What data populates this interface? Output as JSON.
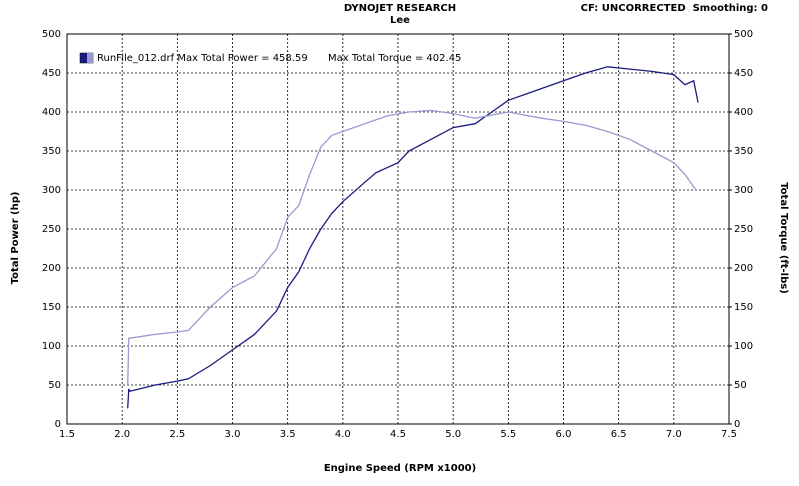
{
  "chart_data": {
    "type": "line",
    "title": "DYNOJET RESEARCH",
    "subtitle": "Lee",
    "header_right": "CF: UNCORRECTED  Smoothing: 0",
    "legend_texts": [
      "RunFile_012.drf Max Total Power = 458.59",
      "Max Total Torque = 402.45"
    ],
    "xlabel": "Engine Speed (RPM x1000)",
    "ylabel": "Total Power (hp)",
    "y2label": "Total Torque (ft-lbs)",
    "xlim": [
      1.5,
      7.5
    ],
    "xticks": [
      1.5,
      {
        "value": 2,
        "label": "2.0"
      },
      2.5,
      {
        "value": 3,
        "label": "3.0"
      },
      3.5,
      {
        "value": 4,
        "label": "4.0"
      },
      4.5,
      {
        "value": 5,
        "label": "5.0"
      },
      5.5,
      {
        "value": 6,
        "label": "6.0"
      },
      6.5,
      {
        "value": 7,
        "label": "7.0"
      },
      7.5
    ],
    "ylim": [
      0,
      500
    ],
    "yticks": [
      0,
      50,
      100,
      150,
      200,
      250,
      300,
      350,
      400,
      450,
      500
    ],
    "y2lim": [
      0,
      500
    ],
    "y2ticks": [
      0,
      50,
      100,
      150,
      200,
      250,
      300,
      350,
      400,
      450,
      500
    ],
    "grid": true,
    "series": [
      {
        "color": "#1a1a80",
        "axis": "y",
        "x": [
          2.05,
          2.06,
          2.07,
          2.3,
          2.5,
          2.6,
          2.8,
          3.0,
          3.2,
          3.4,
          3.5,
          3.6,
          3.7,
          3.8,
          3.9,
          4.0,
          4.2,
          4.3,
          4.5,
          4.6,
          4.8,
          5.0,
          5.2,
          5.3,
          5.5,
          5.7,
          6.0,
          6.2,
          6.4,
          6.6,
          6.8,
          7.0,
          7.1,
          7.18,
          7.22
        ],
        "values": [
          20,
          45,
          42,
          50,
          55,
          58,
          75,
          95,
          115,
          145,
          175,
          195,
          225,
          250,
          270,
          285,
          310,
          322,
          335,
          350,
          365,
          380,
          385,
          395,
          415,
          425,
          440,
          450,
          458,
          455,
          452,
          448,
          435,
          440,
          412
        ]
      },
      {
        "color": "#9a9ad0",
        "axis": "y2",
        "x": [
          2.05,
          2.06,
          2.07,
          2.3,
          2.5,
          2.6,
          2.8,
          3.0,
          3.2,
          3.4,
          3.5,
          3.6,
          3.7,
          3.8,
          3.9,
          4.0,
          4.2,
          4.4,
          4.6,
          4.8,
          5.0,
          5.2,
          5.5,
          5.8,
          6.0,
          6.2,
          6.4,
          6.6,
          6.8,
          7.0,
          7.1,
          7.2
        ],
        "values": [
          50,
          110,
          110,
          115,
          118,
          120,
          150,
          175,
          190,
          225,
          265,
          280,
          320,
          355,
          370,
          375,
          385,
          395,
          400,
          402,
          398,
          392,
          400,
          392,
          388,
          383,
          375,
          365,
          350,
          335,
          320,
          300
        ]
      }
    ]
  }
}
